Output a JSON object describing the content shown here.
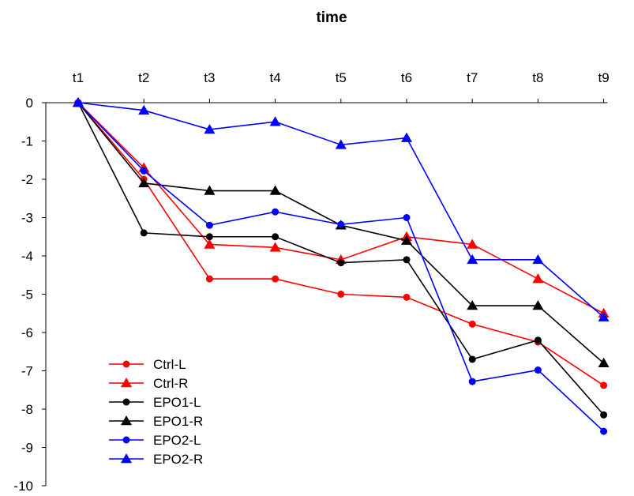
{
  "chart_data": {
    "type": "line",
    "title": "time",
    "xlabel": "",
    "ylabel": "",
    "x": [
      "t1",
      "t2",
      "t3",
      "t4",
      "t5",
      "t6",
      "t7",
      "t8",
      "t9"
    ],
    "ylim": [
      -10,
      0
    ],
    "yticks": [
      0,
      -1,
      -2,
      -3,
      -4,
      -5,
      -6,
      -7,
      -8,
      -9,
      -10
    ],
    "x_axis_position": "top",
    "grid": false,
    "legend_position": "bottom-left",
    "series": [
      {
        "name": "Ctrl-L",
        "color": "#ff0000",
        "marker": "circle",
        "values": [
          0,
          -2.0,
          -4.6,
          -4.6,
          -5.0,
          -5.08,
          -5.78,
          -6.25,
          -7.38
        ]
      },
      {
        "name": "Ctrl-R",
        "color": "#ff0000",
        "marker": "triangle",
        "values": [
          0,
          -1.7,
          -3.7,
          -3.78,
          -4.1,
          -3.5,
          -3.7,
          -4.6,
          -5.5
        ]
      },
      {
        "name": "EPO1-L",
        "color": "#000000",
        "marker": "circle",
        "values": [
          0,
          -3.4,
          -3.5,
          -3.5,
          -4.18,
          -4.1,
          -6.7,
          -6.2,
          -8.15
        ]
      },
      {
        "name": "EPO1-R",
        "color": "#000000",
        "marker": "triangle",
        "values": [
          0,
          -2.1,
          -2.3,
          -2.3,
          -3.2,
          -3.6,
          -5.3,
          -5.3,
          -6.8
        ]
      },
      {
        "name": "EPO2-L",
        "color": "#0000ff",
        "marker": "circle",
        "values": [
          0,
          -1.78,
          -3.2,
          -2.85,
          -3.18,
          -3.0,
          -7.28,
          -6.98,
          -8.58
        ]
      },
      {
        "name": "EPO2-R",
        "color": "#0000ff",
        "marker": "triangle",
        "values": [
          0,
          -0.2,
          -0.7,
          -0.5,
          -1.1,
          -0.92,
          -4.1,
          -4.1,
          -5.6
        ]
      }
    ]
  }
}
